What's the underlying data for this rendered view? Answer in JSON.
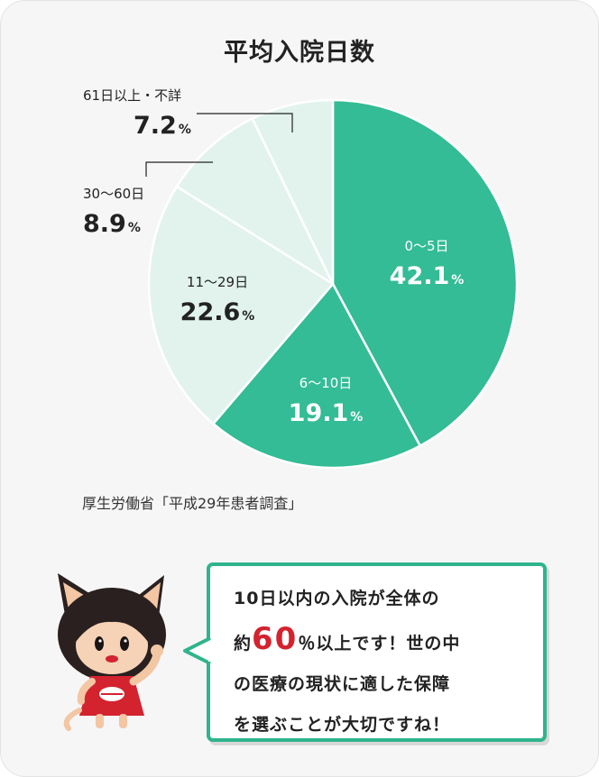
{
  "chart_data": {
    "type": "pie",
    "title": "平均入院日数",
    "unit": "%",
    "start_angle_deg": 0,
    "direction": "clockwise",
    "slices": [
      {
        "label": "0～5日",
        "value": 42.1,
        "color": "#33bc95"
      },
      {
        "label": "6～10日",
        "value": 19.1,
        "color": "#33bc95"
      },
      {
        "label": "11～29日",
        "value": 22.6,
        "color": "#e2f3ee"
      },
      {
        "label": "30～60日",
        "value": 8.9,
        "color": "#e2f3ee"
      },
      {
        "label": "61日以上・不詳",
        "value": 7.2,
        "color": "#e2f3ee"
      }
    ]
  },
  "source": "厚生労働省「平成29年患者調査」",
  "bubble": {
    "line1": "10日以内の入院が全体の",
    "line2_pre": "約",
    "line2_big": "60",
    "line2_post": "％以上です！世の中",
    "line3": "の医療の現状に適した保障",
    "line4": "を選ぶことが大切ですね！"
  },
  "colors": {
    "accent": "#2fb48d",
    "highlight": "#d3232f"
  }
}
